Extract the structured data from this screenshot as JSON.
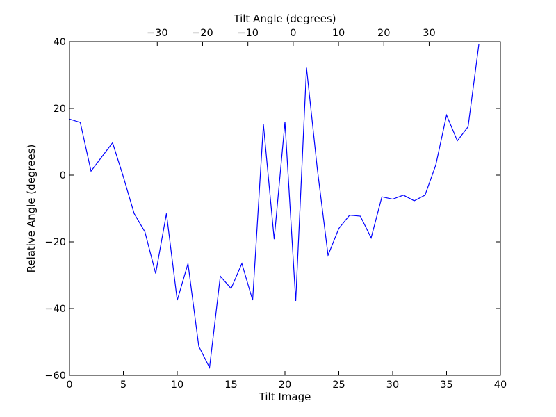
{
  "chart_data": {
    "type": "line",
    "xlabel": "Tilt Image",
    "ylabel": "Relative Angle (degrees)",
    "top_xlabel": "Tilt Angle (degrees)",
    "xlim": [
      0,
      40
    ],
    "ylim": [
      -60,
      40
    ],
    "top_xlim": [
      -49.37,
      45.73
    ],
    "x_ticks": [
      0,
      5,
      10,
      15,
      20,
      25,
      30,
      35,
      40
    ],
    "x_tick_labels": [
      "0",
      "5",
      "10",
      "15",
      "20",
      "25",
      "30",
      "35",
      "40"
    ],
    "y_ticks": [
      -60,
      -40,
      -20,
      0,
      20,
      40
    ],
    "y_tick_labels": [
      "−60",
      "−40",
      "−20",
      "0",
      "20",
      "40"
    ],
    "top_x_ticks": [
      -30,
      -20,
      -10,
      0,
      10,
      20,
      30
    ],
    "top_x_tick_labels": [
      "−30",
      "−20",
      "−10",
      "0",
      "10",
      "20",
      "30"
    ],
    "grid": false,
    "line_color": "#0000ff",
    "series": [
      {
        "x": [
          0,
          1,
          2,
          3,
          4,
          5,
          6,
          7,
          8,
          9,
          10,
          11,
          12,
          13,
          14,
          15,
          16,
          17,
          18,
          19,
          20,
          21,
          22,
          23,
          24,
          25,
          26,
          27,
          28,
          29,
          30,
          31,
          32,
          33,
          34,
          35,
          36,
          37,
          38
        ],
        "values": [
          16.8,
          15.8,
          1.2,
          5.5,
          9.7,
          -0.5,
          -11.5,
          -17.0,
          -29.5,
          -11.5,
          -37.5,
          -26.5,
          -51.3,
          -57.7,
          -30.3,
          -34.0,
          -26.5,
          -37.5,
          15.2,
          -19.2,
          15.9,
          -37.7,
          32.2,
          2.0,
          -24.0,
          -16.0,
          -12.0,
          -12.3,
          -18.8,
          -6.5,
          -7.2,
          -6.0,
          -7.7,
          -6.0,
          3.0,
          18.0,
          10.3,
          14.5,
          39.2
        ]
      }
    ]
  }
}
